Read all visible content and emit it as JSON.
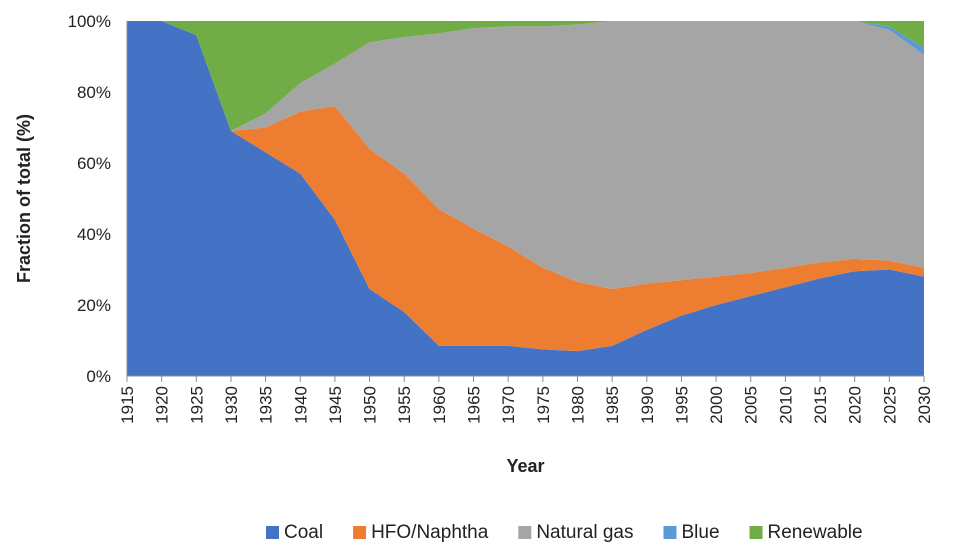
{
  "chart_data": {
    "type": "area",
    "stacked": true,
    "title": "",
    "xlabel": "Year",
    "ylabel": "Fraction of total (%)",
    "x": [
      1915,
      1920,
      1925,
      1930,
      1935,
      1940,
      1945,
      1950,
      1955,
      1960,
      1965,
      1970,
      1975,
      1980,
      1985,
      1990,
      1995,
      2000,
      2005,
      2010,
      2015,
      2020,
      2025,
      2030
    ],
    "ylim": [
      0,
      100
    ],
    "yticks": [
      "0%",
      "20%",
      "40%",
      "60%",
      "80%",
      "100%"
    ],
    "xticks": [
      "1915",
      "1920",
      "1925",
      "1930",
      "1935",
      "1940",
      "1945",
      "1950",
      "1955",
      "1960",
      "1965",
      "1970",
      "1975",
      "1980",
      "1985",
      "1990",
      "1995",
      "2000",
      "2005",
      "2010",
      "2015",
      "2020",
      "2025",
      "2030"
    ],
    "legend_position": "bottom",
    "grid": false,
    "series": [
      {
        "name": "Coal",
        "color": "#4472C4",
        "values": [
          100,
          100,
          96,
          69,
          63,
          57,
          44,
          24.5,
          18,
          8.5,
          8.5,
          8.5,
          7.5,
          7,
          8.5,
          13,
          17,
          20,
          22.5,
          25,
          27.5,
          29.5,
          30,
          28
        ]
      },
      {
        "name": "HFO/Naphtha",
        "color": "#ED7D31",
        "values": [
          0,
          0,
          0,
          0,
          7,
          17.5,
          32,
          39.5,
          39,
          38.5,
          33,
          28,
          23,
          19.5,
          16,
          13,
          10,
          8,
          6.5,
          5.5,
          4.5,
          3.5,
          2.5,
          2.5
        ]
      },
      {
        "name": "Natural gas",
        "color": "#A5A5A5",
        "values": [
          0,
          0,
          0,
          0,
          4,
          8,
          12,
          30,
          38.5,
          49.5,
          56.5,
          62,
          68,
          72.5,
          75.5,
          74,
          73,
          72,
          71,
          69.5,
          68,
          67,
          65,
          60
        ]
      },
      {
        "name": "Blue",
        "color": "#5B9BD5",
        "values": [
          0,
          0,
          0,
          0,
          0,
          0,
          0,
          0,
          0,
          0,
          0,
          0,
          0,
          0,
          0,
          0,
          0,
          0,
          0,
          0,
          0,
          0,
          1,
          2
        ]
      },
      {
        "name": "Renewable",
        "color": "#70AD47",
        "values": [
          0,
          0,
          4,
          31,
          26,
          17.5,
          12,
          6,
          4.5,
          3.5,
          2,
          1.5,
          1.5,
          1,
          0,
          0,
          0,
          0,
          0,
          0,
          0,
          0,
          1.5,
          7.5
        ]
      }
    ]
  }
}
